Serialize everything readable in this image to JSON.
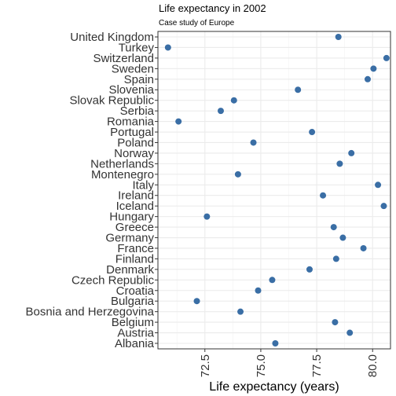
{
  "chart_data": {
    "type": "scatter",
    "title": "Life expectancy in 2002",
    "subtitle": "Case study of Europe",
    "xlabel": "Life expectancy (years)",
    "ylabel": "",
    "xlim": [
      70.4,
      80.8
    ],
    "xticks": [
      72.5,
      75.0,
      77.5,
      80.0
    ],
    "xtick_labels": [
      "72.5",
      "75.0",
      "77.5",
      "80.0"
    ],
    "grid": true,
    "point_color": "#3a6ea5",
    "categories": [
      "Albania",
      "Austria",
      "Belgium",
      "Bosnia and Herzegovina",
      "Bulgaria",
      "Croatia",
      "Czech Republic",
      "Denmark",
      "Finland",
      "France",
      "Germany",
      "Greece",
      "Hungary",
      "Iceland",
      "Ireland",
      "Italy",
      "Montenegro",
      "Netherlands",
      "Norway",
      "Poland",
      "Portugal",
      "Romania",
      "Serbia",
      "Slovak Republic",
      "Slovenia",
      "Spain",
      "Sweden",
      "Switzerland",
      "Turkey",
      "United Kingdom"
    ],
    "values": [
      75.65,
      78.98,
      78.32,
      74.09,
      72.14,
      74.88,
      75.51,
      77.18,
      78.37,
      79.59,
      78.67,
      78.26,
      72.59,
      80.5,
      77.78,
      80.24,
      73.98,
      78.53,
      79.05,
      74.67,
      77.29,
      71.32,
      73.21,
      73.8,
      76.66,
      79.78,
      80.04,
      80.62,
      70.85,
      78.47
    ]
  }
}
